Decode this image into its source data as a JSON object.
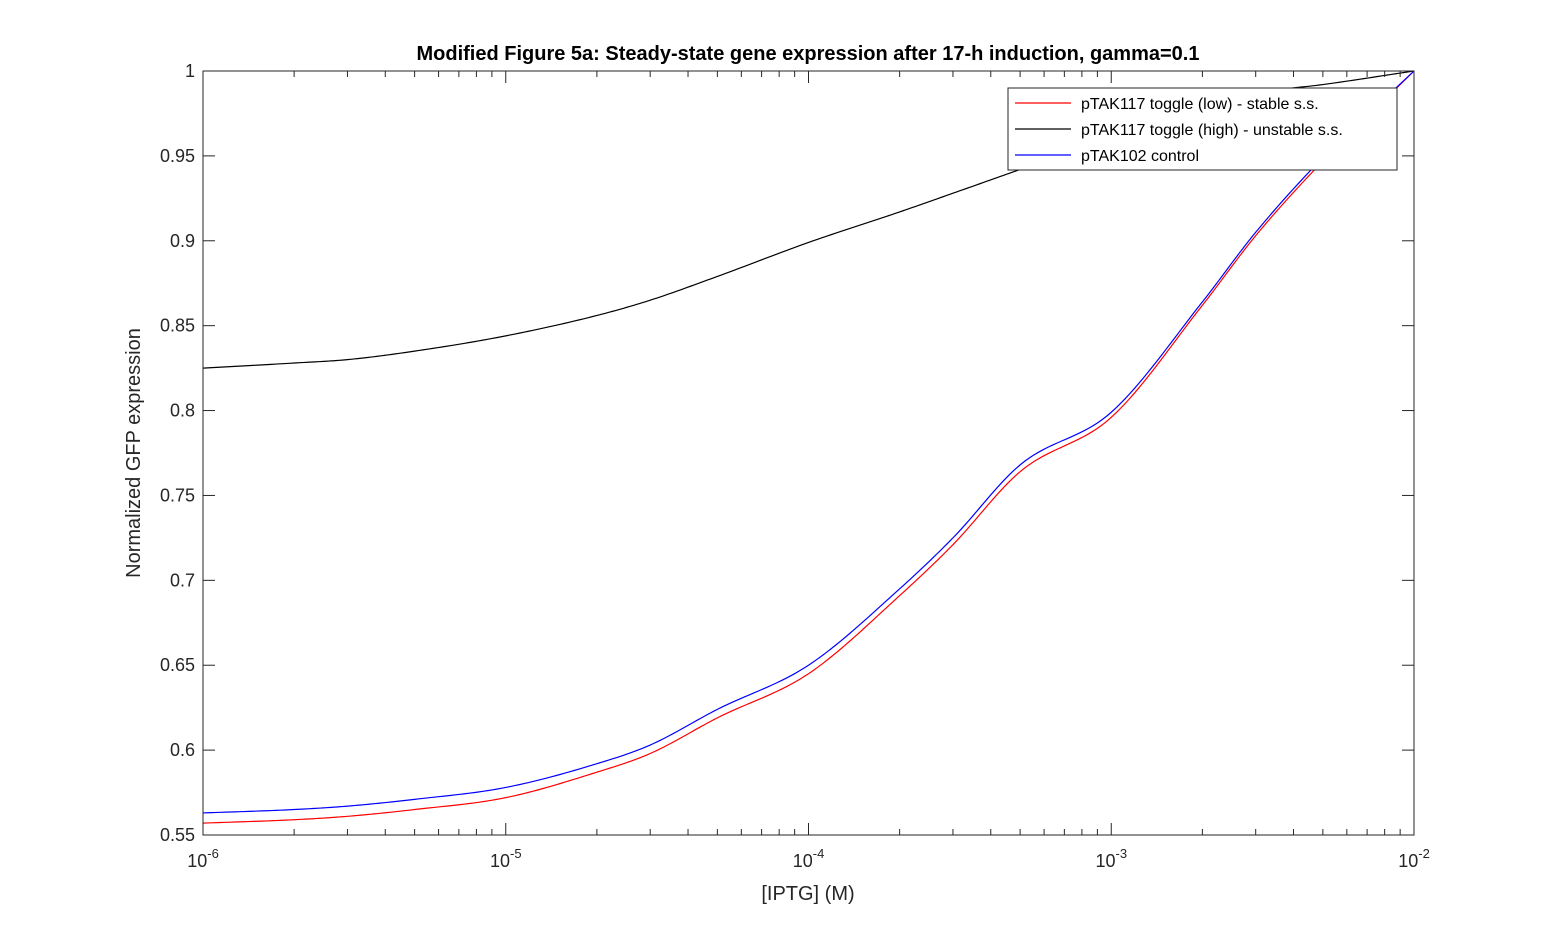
{
  "chart_data": {
    "type": "line",
    "title": "Modified Figure 5a: Steady-state gene expression after 17-h induction, gamma=0.1",
    "xlabel": "[IPTG] (M)",
    "ylabel": "Normalized GFP expression",
    "xscale": "log",
    "xlim": [
      1e-06,
      0.01
    ],
    "ylim": [
      0.55,
      1
    ],
    "x_ticks": [
      {
        "value": 1e-06,
        "base": "10",
        "exp": "-6"
      },
      {
        "value": 1e-05,
        "base": "10",
        "exp": "-5"
      },
      {
        "value": 0.0001,
        "base": "10",
        "exp": "-4"
      },
      {
        "value": 0.001,
        "base": "10",
        "exp": "-3"
      },
      {
        "value": 0.01,
        "base": "10",
        "exp": "-2"
      }
    ],
    "y_ticks": [
      {
        "value": 0.55,
        "label": "0.55"
      },
      {
        "value": 0.6,
        "label": "0.6"
      },
      {
        "value": 0.65,
        "label": "0.65"
      },
      {
        "value": 0.7,
        "label": "0.7"
      },
      {
        "value": 0.75,
        "label": "0.75"
      },
      {
        "value": 0.8,
        "label": "0.8"
      },
      {
        "value": 0.85,
        "label": "0.85"
      },
      {
        "value": 0.9,
        "label": "0.9"
      },
      {
        "value": 0.95,
        "label": "0.95"
      },
      {
        "value": 1,
        "label": "1"
      }
    ],
    "grid": false,
    "legend_position": "top-right",
    "series": [
      {
        "name": "pTAK117 toggle (low) - stable s.s.",
        "color": "#ff0000",
        "x": [
          1e-06,
          2e-06,
          3e-06,
          5e-06,
          1e-05,
          2e-05,
          3e-05,
          5e-05,
          0.0001,
          0.0002,
          0.0003,
          0.0005,
          0.001,
          0.002,
          0.003,
          0.005,
          0.01
        ],
        "y": [
          0.557,
          0.559,
          0.561,
          0.565,
          0.572,
          0.587,
          0.598,
          0.619,
          0.645,
          0.691,
          0.721,
          0.764,
          0.796,
          0.862,
          0.903,
          0.947,
          1.0
        ]
      },
      {
        "name": "pTAK117 toggle (high) - unstable s.s.",
        "color": "#000000",
        "x": [
          1e-06,
          2e-06,
          3e-06,
          5e-06,
          1e-05,
          2e-05,
          3e-05,
          5e-05,
          0.0001,
          0.0002,
          0.0003,
          0.0005,
          0.001,
          0.002,
          0.003,
          0.005,
          0.01
        ],
        "y": [
          0.825,
          0.828,
          0.83,
          0.835,
          0.844,
          0.856,
          0.865,
          0.879,
          0.899,
          0.917,
          0.928,
          0.942,
          0.961,
          0.978,
          0.987,
          0.992,
          1.0
        ]
      },
      {
        "name": "pTAK102 control",
        "color": "#0000ff",
        "x": [
          1e-06,
          2e-06,
          3e-06,
          5e-06,
          1e-05,
          2e-05,
          3e-05,
          5e-05,
          0.0001,
          0.0002,
          0.0003,
          0.0005,
          0.001,
          0.002,
          0.003,
          0.005,
          0.01
        ],
        "y": [
          0.563,
          0.565,
          0.567,
          0.571,
          0.578,
          0.592,
          0.603,
          0.624,
          0.65,
          0.695,
          0.725,
          0.768,
          0.799,
          0.864,
          0.905,
          0.949,
          1.0
        ]
      }
    ]
  }
}
